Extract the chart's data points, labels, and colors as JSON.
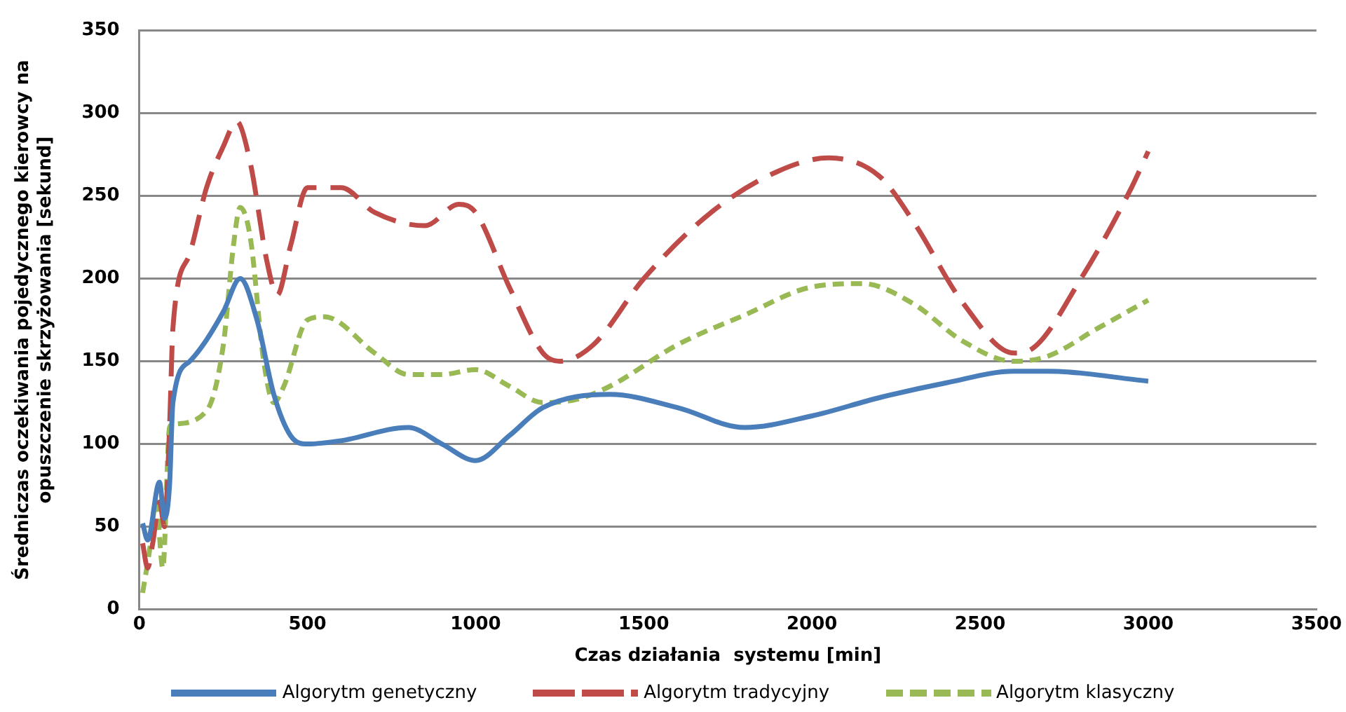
{
  "chart_data": {
    "type": "line",
    "xlabel": "Czas działania  systemu [min]",
    "ylabel": "Średniczas oczekiwania pojedycznego kierowcy na\nopuszczenie skrzyżowania [sekund]",
    "xlim": [
      0,
      3500
    ],
    "xticks": [
      0,
      500,
      1000,
      1500,
      2000,
      2500,
      3000,
      3500
    ],
    "ylim": [
      0,
      350
    ],
    "yticks": [
      0,
      50,
      100,
      150,
      200,
      250,
      300,
      350
    ],
    "grid": "y",
    "legend": "bottom",
    "marker": "none",
    "series": [
      {
        "name": "Algorytm genetyczny",
        "color": "#4a7ebb",
        "line_style": "solid",
        "x": [
          10,
          25,
          60,
          75,
          90,
          100,
          150,
          200,
          250,
          300,
          350,
          400,
          450,
          500,
          600,
          800,
          900,
          1000,
          1100,
          1200,
          1400,
          1600,
          1800,
          2000,
          2200,
          2400,
          2600,
          2700,
          3000
        ],
        "values": [
          52,
          42,
          77,
          55,
          75,
          125,
          150,
          163,
          180,
          200,
          175,
          130,
          105,
          100,
          102,
          110,
          100,
          90,
          105,
          122,
          130,
          122,
          110,
          117,
          128,
          137,
          144,
          144,
          138
        ]
      },
      {
        "name": "Algorytm tradycyjny",
        "color": "#be4b48",
        "line_style": "dashed",
        "x": [
          10,
          25,
          40,
          60,
          75,
          90,
          100,
          150,
          200,
          250,
          290,
          330,
          380,
          410,
          450,
          500,
          600,
          700,
          850,
          950,
          1000,
          1100,
          1200,
          1250,
          1350,
          1500,
          1700,
          1900,
          2050,
          2200,
          2300,
          2450,
          2600,
          2650,
          2800,
          2950,
          3000
        ],
        "values": [
          40,
          25,
          40,
          65,
          50,
          110,
          170,
          215,
          255,
          280,
          295,
          270,
          210,
          190,
          220,
          255,
          255,
          240,
          232,
          245,
          240,
          195,
          155,
          150,
          160,
          200,
          240,
          265,
          273,
          262,
          235,
          185,
          155,
          157,
          200,
          255,
          277
        ]
      },
      {
        "name": "Algorytm klasyczny",
        "color": "#98b954",
        "line_style": "dotted",
        "x": [
          10,
          30,
          50,
          70,
          90,
          100,
          200,
          250,
          280,
          300,
          330,
          370,
          400,
          430,
          500,
          550,
          700,
          800,
          900,
          1000,
          1100,
          1200,
          1300,
          1400,
          1600,
          1800,
          2000,
          2150,
          2300,
          2450,
          2600,
          2700,
          2850,
          3000
        ],
        "values": [
          10,
          35,
          65,
          25,
          110,
          112,
          120,
          160,
          220,
          243,
          225,
          150,
          125,
          135,
          175,
          177,
          155,
          142,
          142,
          145,
          135,
          125,
          127,
          135,
          160,
          178,
          195,
          197,
          185,
          162,
          150,
          153,
          170,
          187
        ]
      }
    ]
  }
}
